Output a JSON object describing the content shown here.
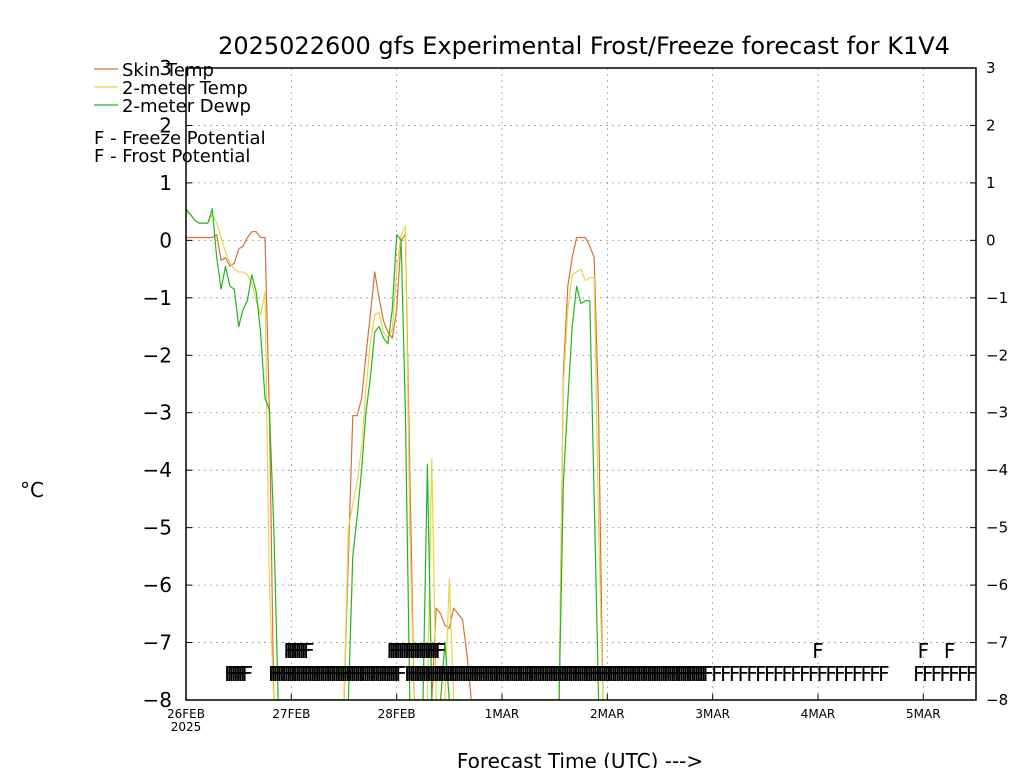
{
  "chart_data": {
    "type": "line",
    "title": "2025022600 gfs Experimental Frost/Freeze forecast for K1V4",
    "xlabel": "Forecast Time (UTC) --->",
    "ylabel": "°C",
    "ylim": [
      -8,
      3
    ],
    "xlim": [
      0,
      180
    ],
    "y_ticks": [
      -8,
      -7,
      -6,
      -5,
      -4,
      -3,
      -2,
      -1,
      0,
      1,
      2,
      3
    ],
    "grid": true,
    "legend_placement": "top-left",
    "x_ticks": [
      {
        "x": 0,
        "label": "26FEB",
        "sublabel": "2025"
      },
      {
        "x": 24,
        "label": "27FEB",
        "sublabel": ""
      },
      {
        "x": 48,
        "label": "28FEB",
        "sublabel": ""
      },
      {
        "x": 72,
        "label": "1MAR",
        "sublabel": ""
      },
      {
        "x": 96,
        "label": "2MAR",
        "sublabel": ""
      },
      {
        "x": 120,
        "label": "3MAR",
        "sublabel": ""
      },
      {
        "x": 144,
        "label": "4MAR",
        "sublabel": ""
      },
      {
        "x": 168,
        "label": "5MAR",
        "sublabel": ""
      }
    ],
    "series": [
      {
        "name": "Skin Temp",
        "color": "#d2733a",
        "points": [
          [
            0,
            0.05
          ],
          [
            6,
            0.05
          ],
          [
            7,
            0.1
          ],
          [
            8,
            -0.35
          ],
          [
            9,
            -0.3
          ],
          [
            10,
            -0.45
          ],
          [
            11,
            -0.4
          ],
          [
            12,
            -0.15
          ],
          [
            13,
            -0.1
          ],
          [
            14,
            0.05
          ],
          [
            15,
            0.15
          ],
          [
            16,
            0.15
          ],
          [
            17,
            0.05
          ],
          [
            18,
            0.05
          ],
          [
            19,
            -3
          ],
          [
            20,
            -8
          ],
          [
            36,
            -8
          ],
          [
            37,
            -5.5
          ],
          [
            38,
            -3.05
          ],
          [
            39,
            -3.05
          ],
          [
            40,
            -2.75
          ],
          [
            41,
            -2
          ],
          [
            42,
            -1.3
          ],
          [
            43,
            -0.55
          ],
          [
            44,
            -1
          ],
          [
            45,
            -1.4
          ],
          [
            46,
            -1.6
          ],
          [
            47,
            -1.7
          ],
          [
            48,
            -1.2
          ],
          [
            49,
            0
          ],
          [
            50,
            0.1
          ],
          [
            51,
            -4
          ],
          [
            52,
            -8
          ],
          [
            56,
            -8
          ],
          [
            57,
            -6.4
          ],
          [
            58,
            -6.5
          ],
          [
            59,
            -6.7
          ],
          [
            60,
            -6.75
          ],
          [
            61,
            -6.4
          ],
          [
            62,
            -6.5
          ],
          [
            63,
            -6.6
          ],
          [
            64,
            -7.2
          ],
          [
            65,
            -8
          ],
          [
            85,
            -8
          ],
          [
            86,
            -2.3
          ],
          [
            87,
            -0.8
          ],
          [
            88,
            -0.3
          ],
          [
            89,
            0.05
          ],
          [
            90,
            0.05
          ],
          [
            91,
            0.05
          ],
          [
            92,
            -0.1
          ],
          [
            93,
            -0.3
          ],
          [
            94,
            -3
          ],
          [
            95,
            -8
          ]
        ]
      },
      {
        "name": "2-meter Temp",
        "color": "#e8d44a",
        "points": [
          [
            0,
            0.5
          ],
          [
            1,
            0.45
          ],
          [
            2,
            0.35
          ],
          [
            3,
            0.3
          ],
          [
            4,
            0.3
          ],
          [
            5,
            0.3
          ],
          [
            6,
            0.45
          ],
          [
            7,
            0.3
          ],
          [
            8,
            0.05
          ],
          [
            9,
            -0.2
          ],
          [
            10,
            -0.4
          ],
          [
            11,
            -0.5
          ],
          [
            12,
            -0.55
          ],
          [
            13,
            -0.55
          ],
          [
            14,
            -0.6
          ],
          [
            15,
            -0.75
          ],
          [
            16,
            -1.05
          ],
          [
            17,
            -1.3
          ],
          [
            18,
            -0.9
          ],
          [
            19,
            -6
          ],
          [
            20,
            -8
          ],
          [
            36,
            -8
          ],
          [
            37,
            -5
          ],
          [
            38,
            -4.6
          ],
          [
            39,
            -4.2
          ],
          [
            40,
            -3.6
          ],
          [
            41,
            -2.6
          ],
          [
            42,
            -1.8
          ],
          [
            43,
            -1.3
          ],
          [
            44,
            -1.25
          ],
          [
            45,
            -1.6
          ],
          [
            46,
            -1.7
          ],
          [
            47,
            -1.55
          ],
          [
            48,
            -0.5
          ],
          [
            49,
            0.1
          ],
          [
            50,
            0.25
          ],
          [
            51,
            -5
          ],
          [
            52,
            -8
          ],
          [
            55,
            -8
          ],
          [
            56,
            -3.8
          ],
          [
            57,
            -8
          ],
          [
            59,
            -8
          ],
          [
            60,
            -5.9
          ],
          [
            61,
            -8
          ],
          [
            85,
            -8
          ],
          [
            86,
            -2.5
          ],
          [
            87,
            -1.2
          ],
          [
            88,
            -0.6
          ],
          [
            89,
            -0.55
          ],
          [
            90,
            -0.5
          ],
          [
            91,
            -0.7
          ],
          [
            92,
            -0.65
          ],
          [
            93,
            -0.65
          ],
          [
            94,
            -5
          ],
          [
            95,
            -8
          ]
        ]
      },
      {
        "name": "2-meter Dewp",
        "color": "#22b422",
        "points": [
          [
            0,
            0.55
          ],
          [
            1,
            0.45
          ],
          [
            2,
            0.35
          ],
          [
            3,
            0.3
          ],
          [
            4,
            0.3
          ],
          [
            5,
            0.3
          ],
          [
            6,
            0.55
          ],
          [
            7,
            -0.3
          ],
          [
            8,
            -0.85
          ],
          [
            9,
            -0.45
          ],
          [
            10,
            -0.8
          ],
          [
            11,
            -0.85
          ],
          [
            12,
            -1.5
          ],
          [
            13,
            -1.2
          ],
          [
            14,
            -1.05
          ],
          [
            15,
            -0.6
          ],
          [
            16,
            -0.9
          ],
          [
            17,
            -1.6
          ],
          [
            18,
            -2.75
          ],
          [
            19,
            -2.95
          ],
          [
            20,
            -5
          ],
          [
            21,
            -8
          ],
          [
            37,
            -8
          ],
          [
            38,
            -5.5
          ],
          [
            39,
            -4.8
          ],
          [
            40,
            -4
          ],
          [
            41,
            -3
          ],
          [
            42,
            -2.4
          ],
          [
            43,
            -1.6
          ],
          [
            44,
            -1.5
          ],
          [
            45,
            -1.7
          ],
          [
            46,
            -1.8
          ],
          [
            47,
            -1.2
          ],
          [
            48,
            0.1
          ],
          [
            49,
            0.0
          ],
          [
            50,
            -3
          ],
          [
            51,
            -8
          ],
          [
            54,
            -8
          ],
          [
            55,
            -3.9
          ],
          [
            56,
            -8
          ],
          [
            58,
            -8
          ],
          [
            59,
            -7
          ],
          [
            60,
            -8
          ],
          [
            85,
            -8
          ],
          [
            86,
            -4.2
          ],
          [
            87,
            -2.8
          ],
          [
            88,
            -1.5
          ],
          [
            89,
            -0.8
          ],
          [
            90,
            -1.1
          ],
          [
            91,
            -1.05
          ],
          [
            92,
            -1.05
          ],
          [
            93,
            -4.5
          ],
          [
            94,
            -8
          ]
        ]
      }
    ],
    "frost_potential": {
      "label": "F - Frost Potential",
      "color": "#4f6fd8",
      "y": -7.15,
      "x": [
        23.5,
        24,
        24.5,
        25,
        25.5,
        26,
        26.5,
        27,
        27.5,
        28,
        47,
        47.5,
        48,
        48.5,
        49,
        49.5,
        50,
        50.5,
        51,
        51.5,
        52,
        52.5,
        53,
        53.5,
        54,
        54.5,
        55,
        55.5,
        56,
        56.5,
        57,
        57.5,
        58,
        144,
        168,
        174
      ]
    },
    "freeze_potential": {
      "label": "F - Freeze Potential",
      "color": "#c8329b",
      "y": -7.55,
      "x": [
        10,
        10.5,
        11,
        11.5,
        12,
        12.5,
        13,
        13.5,
        14,
        20,
        20.5,
        21,
        21.5,
        22,
        22.5,
        23,
        23.5,
        24,
        24.5,
        25,
        25.5,
        26,
        26.5,
        27,
        27.5,
        28,
        28.5,
        29,
        29.5,
        30,
        30.5,
        31,
        31.5,
        32,
        32.5,
        33,
        33.5,
        34,
        34.5,
        35,
        35.5,
        36,
        36.5,
        37,
        37.5,
        38,
        38.5,
        39,
        39.5,
        40,
        40.5,
        41,
        41.5,
        42,
        42.5,
        43,
        43.5,
        44,
        44.5,
        45,
        45.5,
        46,
        46.5,
        47,
        47.5,
        48,
        48.5,
        49,
        51,
        51.5,
        52,
        52.5,
        53,
        53.5,
        54,
        54.5,
        55,
        55.5,
        56,
        56.5,
        57,
        57.5,
        58,
        58.5,
        59,
        59.5,
        60,
        60.5,
        61,
        61.5,
        62,
        62.5,
        63,
        63.5,
        64,
        64.5,
        65,
        65.5,
        66,
        66.5,
        67,
        67.5,
        68,
        68.5,
        69,
        69.5,
        70,
        70.5,
        71,
        71.5,
        72,
        72.5,
        73,
        73.5,
        74,
        74.5,
        75,
        75.5,
        76,
        76.5,
        77,
        77.5,
        78,
        78.5,
        79,
        79.5,
        80,
        80.5,
        81,
        81.5,
        82,
        82.5,
        83,
        83.5,
        84,
        84.5,
        85,
        85.5,
        86,
        86.5,
        87,
        87.5,
        88,
        88.5,
        89,
        89.5,
        90,
        90.5,
        91,
        91.5,
        92,
        92.5,
        93,
        93.5,
        94,
        94.5,
        95,
        95.5,
        96,
        96.5,
        97,
        97.5,
        98,
        98.5,
        99,
        99.5,
        100,
        100.5,
        101,
        101.5,
        102,
        102.5,
        103,
        103.5,
        104,
        104.5,
        105,
        105.5,
        106,
        106.5,
        107,
        107.5,
        108,
        108.5,
        109,
        109.5,
        110,
        110.5,
        111,
        111.5,
        112,
        112.5,
        113,
        113.5,
        114,
        114.5,
        115,
        115.5,
        116,
        116.5,
        117,
        117.5,
        118,
        118.5,
        119,
        121,
        123,
        125,
        127,
        129,
        131,
        133,
        135,
        137,
        139,
        141,
        143,
        145,
        147,
        149,
        151,
        153,
        155,
        157,
        159,
        167,
        169,
        171,
        173,
        175,
        177,
        179
      ]
    }
  }
}
